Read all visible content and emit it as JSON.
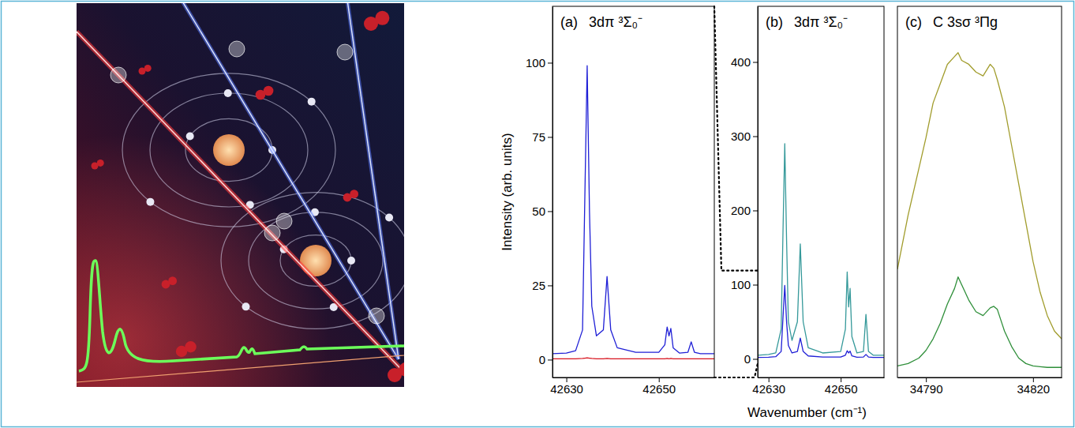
{
  "chart_data": [
    {
      "type": "line",
      "panel_label": "(a)",
      "title": "3dπ ³Σ₀⁻",
      "ylabel": "Intensity (arb. units)",
      "x": [
        42627,
        42630,
        42632,
        42633.5,
        42634,
        42634.5,
        42635,
        42635.5,
        42636.5,
        42638,
        42638.8,
        42639.6,
        42641,
        42645,
        42650,
        42651.3,
        42651.8,
        42652.2,
        42652.6,
        42653.1,
        42654.5,
        42656.3,
        42657,
        42657.7,
        42659,
        42662
      ],
      "series": [
        {
          "color": "#d8141e",
          "values": [
            0.3,
            0.3,
            0.3,
            0.4,
            0.5,
            0.6,
            0.5,
            0.4,
            0.3,
            0.3,
            0.4,
            0.3,
            0.3,
            0.3,
            0.3,
            0.3,
            0.4,
            0.3,
            0.4,
            0.3,
            0.3,
            0.3,
            0.3,
            0.3,
            0.3,
            0.3
          ]
        },
        {
          "color": "#1f1fd6",
          "values": [
            2,
            2.2,
            3,
            10,
            55,
            99,
            50,
            18,
            8,
            10,
            28,
            10,
            4,
            2.5,
            2.5,
            5,
            11,
            8,
            10.5,
            4,
            2.2,
            2.5,
            6,
            2.5,
            2,
            2
          ]
        }
      ],
      "xlim": [
        42627,
        42662
      ],
      "ylim": [
        -6,
        119
      ],
      "xticks": [
        42630,
        42650
      ],
      "yticks": [
        0,
        25,
        50,
        75,
        100
      ]
    },
    {
      "type": "line",
      "panel_label": "(b)",
      "title": "3dπ ³Σ₀⁻",
      "xlabel": "Wavenumber (cm⁻¹)",
      "x": [
        42627,
        42630,
        42632,
        42633.5,
        42634,
        42634.5,
        42635,
        42635.5,
        42636.5,
        42638,
        42638.8,
        42639.6,
        42641,
        42645,
        42650,
        42651.3,
        42651.8,
        42652.2,
        42652.6,
        42653.1,
        42654.5,
        42656.3,
        42657,
        42657.7,
        42659,
        42662
      ],
      "series": [
        {
          "color": "#35999a",
          "values": [
            5,
            6,
            8,
            40,
            170,
            290,
            160,
            50,
            25,
            50,
            155,
            50,
            15,
            8,
            10,
            40,
            117,
            70,
            95,
            30,
            8,
            10,
            60,
            10,
            5,
            5
          ]
        },
        {
          "color": "#1f1fd6",
          "values": [
            2,
            2.2,
            3,
            10,
            55,
            99,
            50,
            18,
            8,
            10,
            28,
            10,
            4,
            2.5,
            2.5,
            5,
            11,
            8,
            10.5,
            4,
            2.2,
            2.5,
            6,
            2.5,
            2,
            2
          ]
        }
      ],
      "xlim": [
        42627,
        42662
      ],
      "ylim": [
        -25,
        475
      ],
      "xticks": [
        42630,
        42650
      ],
      "yticks": [
        0,
        100,
        200,
        300,
        400
      ]
    },
    {
      "type": "line",
      "panel_label": "(c)",
      "title": "C 3sσ ³Πg",
      "tick_labels": "x",
      "x": [
        34782,
        34785,
        34788,
        34790,
        34792,
        34794,
        34796,
        34798,
        34799,
        34800,
        34802,
        34804,
        34806,
        34808,
        34809,
        34810,
        34812,
        34814,
        34816,
        34818,
        34820,
        34822,
        34824,
        34826,
        34828
      ],
      "series": [
        {
          "color": "#a19c2c",
          "values": [
            130,
            200,
            260,
            300,
            345,
            370,
            395,
            405,
            410,
            400,
            395,
            385,
            380,
            395,
            390,
            375,
            340,
            290,
            240,
            190,
            140,
            100,
            70,
            50,
            40
          ]
        },
        {
          "color": "#2f8f3a",
          "values": [
            5,
            8,
            15,
            25,
            40,
            60,
            85,
            105,
            120,
            110,
            90,
            75,
            70,
            80,
            82,
            78,
            50,
            30,
            15,
            8,
            5,
            4,
            3,
            3,
            3
          ]
        }
      ],
      "xlim": [
        34782,
        34828
      ],
      "ylim": [
        -10,
        470
      ],
      "xticks": [
        34790,
        34820
      ]
    }
  ]
}
